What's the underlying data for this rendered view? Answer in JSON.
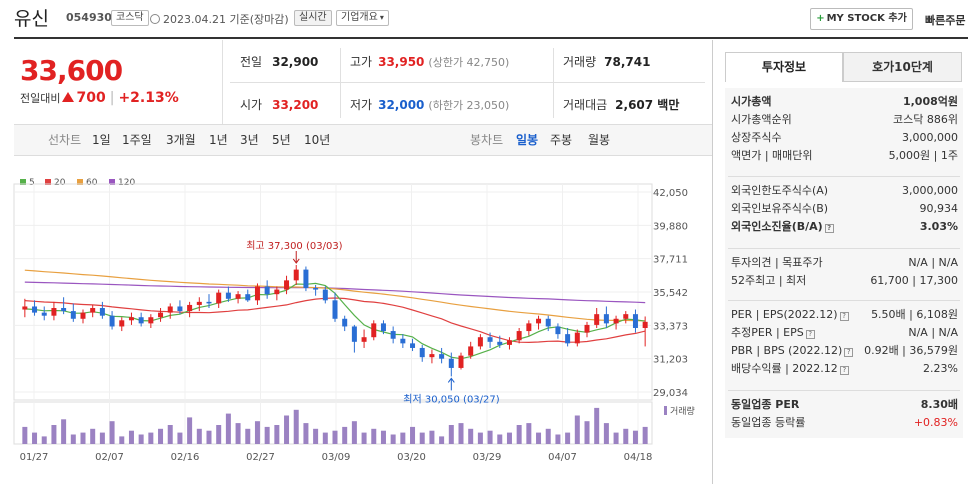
{
  "header": {
    "name": "유신",
    "code": "054930",
    "market": "코스닥",
    "date": "2023.04.21 기준(장마감)",
    "realtime_label": "실시간",
    "company_info_label": "기업개요",
    "mystock_label": "MY STOCK 추가",
    "quick_order_label": "빠른주문"
  },
  "price": {
    "current": "33,600",
    "change_label": "전일대비",
    "change": "700",
    "change_pct": "+2.13%"
  },
  "stats": {
    "prev_label": "전일",
    "prev": "32,900",
    "high_label": "고가",
    "high": "33,950",
    "upper_limit": "(상한가 42,750)",
    "volume_label": "거래량",
    "volume": "78,741",
    "open_label": "시가",
    "open": "33,200",
    "low_label": "저가",
    "low": "32,000",
    "lower_limit": "(하한가 23,050)",
    "amount_label": "거래대금",
    "amount": "2,607 백만"
  },
  "periods": {
    "line_label": "선차트",
    "line_items": [
      "1일",
      "1주일",
      "3개월",
      "1년",
      "3년",
      "5년",
      "10년"
    ],
    "candle_label": "봉차트",
    "candle_items": [
      "일봉",
      "주봉",
      "월봉"
    ],
    "selected_candle": "일봉"
  },
  "legend": [
    "5",
    "20",
    "60",
    "120"
  ],
  "colors": {
    "ma5": "#56b14a",
    "ma20": "#e04040",
    "ma60": "#e8a040",
    "ma120": "#9a56c0",
    "up": "#e12222",
    "down": "#2a6ed4",
    "volume": "#9b82c2"
  },
  "chart_data": {
    "type": "candlestick",
    "yticks": [
      "42,050",
      "39,880",
      "37,711",
      "35,542",
      "33,373",
      "31,203",
      "29,034"
    ],
    "ylim": [
      29034,
      42050
    ],
    "xticks": [
      "01/27",
      "02/07",
      "02/16",
      "02/27",
      "03/09",
      "03/20",
      "03/29",
      "04/07",
      "04/18"
    ],
    "high_annotation": "최고 37,300 (03/03)",
    "low_annotation": "최저 30,050 (03/27)",
    "volume_label": "거래량",
    "candles": [
      [
        34400,
        35100,
        33900,
        34600
      ],
      [
        34600,
        35000,
        34000,
        34200
      ],
      [
        34200,
        34600,
        33700,
        34000
      ],
      [
        34000,
        34900,
        33700,
        34500
      ],
      [
        34500,
        35200,
        34100,
        34300
      ],
      [
        34300,
        34800,
        33600,
        33800
      ],
      [
        33800,
        34400,
        33500,
        34200
      ],
      [
        34200,
        34700,
        33900,
        34500
      ],
      [
        34500,
        34900,
        33800,
        34000
      ],
      [
        34000,
        34300,
        33100,
        33300
      ],
      [
        33300,
        33900,
        33000,
        33700
      ],
      [
        33700,
        34200,
        33400,
        33900
      ],
      [
        33900,
        34200,
        33300,
        33500
      ],
      [
        33500,
        34100,
        33200,
        33900
      ],
      [
        33900,
        34500,
        33600,
        34200
      ],
      [
        34200,
        34800,
        33800,
        34600
      ],
      [
        34600,
        35000,
        34100,
        34300
      ],
      [
        34300,
        34900,
        33900,
        34700
      ],
      [
        34700,
        35200,
        34300,
        34900
      ],
      [
        34900,
        35400,
        34500,
        34800
      ],
      [
        34800,
        35700,
        34500,
        35500
      ],
      [
        35500,
        35900,
        34900,
        35100
      ],
      [
        35100,
        35600,
        34800,
        35400
      ],
      [
        35400,
        35700,
        34900,
        35000
      ],
      [
        35000,
        36100,
        34700,
        35900
      ],
      [
        35900,
        36300,
        35100,
        35400
      ],
      [
        35400,
        35900,
        35000,
        35700
      ],
      [
        35700,
        36600,
        35400,
        36300
      ],
      [
        36300,
        37300,
        36000,
        37000
      ],
      [
        37000,
        37200,
        35600,
        35800
      ],
      [
        35800,
        36000,
        35300,
        35700
      ],
      [
        35700,
        35900,
        34800,
        35000
      ],
      [
        35000,
        35500,
        33600,
        33800
      ],
      [
        33800,
        34000,
        33000,
        33300
      ],
      [
        33300,
        33400,
        31600,
        32300
      ],
      [
        32300,
        33100,
        31900,
        32600
      ],
      [
        32600,
        33700,
        32400,
        33500
      ],
      [
        33500,
        33700,
        32800,
        33000
      ],
      [
        33000,
        33300,
        32200,
        32500
      ],
      [
        32500,
        32800,
        31900,
        32200
      ],
      [
        32200,
        32500,
        31700,
        31900
      ],
      [
        31900,
        32100,
        31000,
        31300
      ],
      [
        31300,
        31800,
        30900,
        31500
      ],
      [
        31500,
        31900,
        30900,
        31200
      ],
      [
        31200,
        31600,
        30050,
        30600
      ],
      [
        30600,
        31600,
        30500,
        31400
      ],
      [
        31400,
        32300,
        31200,
        32000
      ],
      [
        32000,
        32800,
        31800,
        32600
      ],
      [
        32600,
        32900,
        31900,
        32300
      ],
      [
        32300,
        32700,
        31900,
        32100
      ],
      [
        32100,
        32600,
        31800,
        32400
      ],
      [
        32400,
        33200,
        32200,
        33000
      ],
      [
        33000,
        33700,
        32700,
        33500
      ],
      [
        33500,
        34000,
        33100,
        33800
      ],
      [
        33800,
        34000,
        33000,
        33300
      ],
      [
        33300,
        33500,
        32500,
        32800
      ],
      [
        32800,
        33200,
        32000,
        32200
      ],
      [
        32200,
        33100,
        32000,
        32900
      ],
      [
        32900,
        33600,
        32600,
        33400
      ],
      [
        33400,
        34500,
        33200,
        34100
      ],
      [
        34100,
        34600,
        33200,
        33500
      ],
      [
        33500,
        34000,
        33100,
        33800
      ],
      [
        33800,
        34300,
        33500,
        34100
      ],
      [
        34100,
        34400,
        32900,
        33200
      ],
      [
        33200,
        33950,
        32000,
        33600
      ]
    ],
    "volumes": [
      0.45,
      0.3,
      0.2,
      0.5,
      0.65,
      0.25,
      0.3,
      0.4,
      0.3,
      0.6,
      0.2,
      0.35,
      0.25,
      0.3,
      0.4,
      0.5,
      0.3,
      0.7,
      0.4,
      0.35,
      0.5,
      0.8,
      0.55,
      0.4,
      0.6,
      0.45,
      0.5,
      0.75,
      0.9,
      0.55,
      0.4,
      0.3,
      0.35,
      0.45,
      0.6,
      0.3,
      0.4,
      0.35,
      0.25,
      0.3,
      0.45,
      0.3,
      0.35,
      0.2,
      0.5,
      0.55,
      0.4,
      0.3,
      0.35,
      0.25,
      0.3,
      0.5,
      0.55,
      0.3,
      0.4,
      0.25,
      0.3,
      0.75,
      0.6,
      0.95,
      0.55,
      0.3,
      0.4,
      0.35,
      0.45
    ]
  },
  "panel": {
    "tab_info": "투자정보",
    "tab_quote": "호가10단계",
    "rows1": [
      {
        "k": "시가총액",
        "v": "1,008억원",
        "bold": true
      },
      {
        "k": "시가총액순위",
        "v": "코스닥 886위"
      },
      {
        "k": "상장주식수",
        "v": "3,000,000"
      },
      {
        "k": "액면가 | 매매단위",
        "v": "5,000원 | 1주"
      }
    ],
    "rows2": [
      {
        "k": "외국인한도주식수(A)",
        "v": "3,000,000"
      },
      {
        "k": "외국인보유주식수(B)",
        "v": "90,934"
      },
      {
        "k": "외국인소진율(B/A)",
        "v": "3.03%",
        "bold": true
      }
    ],
    "rows3": [
      {
        "k": "투자의견 | 목표주가",
        "v": "N/A | N/A"
      },
      {
        "k": "52주최고 | 최저",
        "v": "61,700 | 17,300"
      }
    ],
    "rows4": [
      {
        "k": "PER | EPS(2022.12)",
        "v": "5.50배 | 6,108원"
      },
      {
        "k": "추정PER | EPS",
        "v": "N/A | N/A"
      },
      {
        "k": "PBR | BPS (2022.12)",
        "v": "0.92배 | 36,579원"
      },
      {
        "k": "배당수익률 | 2022.12",
        "v": "2.23%"
      }
    ],
    "rows5": [
      {
        "k": "동일업종 PER",
        "v": "8.30배",
        "bold": true
      },
      {
        "k": "동일업종 등락률",
        "v": "+0.83%",
        "red": true
      }
    ]
  }
}
